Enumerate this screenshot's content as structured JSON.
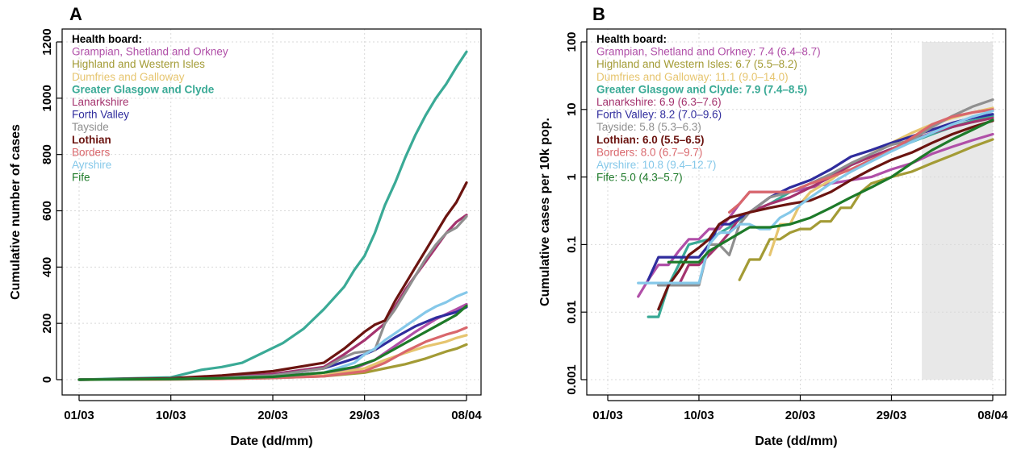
{
  "panels": [
    {
      "label": "A"
    },
    {
      "label": "B"
    }
  ],
  "legend_title": "Health board:",
  "chart_data": [
    {
      "type": "line",
      "panel": "A",
      "xlabel": "Date (dd/mm)",
      "ylabel": "Cumulative number of cases",
      "xticks": [
        "01/03",
        "10/03",
        "20/03",
        "29/03",
        "08/04"
      ],
      "xtick_days": [
        0,
        9,
        19,
        28,
        38
      ],
      "xlim": [
        0,
        38
      ],
      "ylim": [
        0,
        1200
      ],
      "yticks": [
        0,
        200,
        400,
        600,
        800,
        1000,
        1200
      ],
      "ytick_labels": [
        "0",
        "200",
        "400",
        "600",
        "800",
        "1000",
        "1200"
      ],
      "y_scale": "linear",
      "grid": true,
      "legend_position": "top-left",
      "series": [
        {
          "name": "Grampian, Shetland and Orkney",
          "color": "#b04fa8",
          "bold": false,
          "x": [
            0,
            9,
            14,
            19,
            24,
            27,
            29,
            31,
            33,
            35,
            37,
            38
          ],
          "y": [
            0,
            3,
            6,
            12,
            25,
            40,
            70,
            120,
            170,
            215,
            250,
            268
          ]
        },
        {
          "name": "Highland and Western Isles",
          "color": "#a39b35",
          "bold": false,
          "x": [
            0,
            9,
            14,
            19,
            24,
            28,
            30,
            32,
            34,
            36,
            37,
            38
          ],
          "y": [
            0,
            1,
            3,
            6,
            12,
            25,
            40,
            55,
            75,
            100,
            110,
            125
          ]
        },
        {
          "name": "Dumfries and Galloway",
          "color": "#e6c56f",
          "bold": false,
          "x": [
            0,
            9,
            14,
            19,
            24,
            28,
            30,
            32,
            34,
            36,
            37,
            38
          ],
          "y": [
            0,
            1,
            3,
            6,
            15,
            40,
            70,
            95,
            118,
            135,
            148,
            158
          ]
        },
        {
          "name": "Greater Glasgow and Clyde",
          "color": "#3aaa96",
          "bold": true,
          "x": [
            0,
            9,
            12,
            14,
            16,
            18,
            20,
            22,
            24,
            26,
            27,
            28,
            29,
            30,
            31,
            32,
            33,
            34,
            35,
            36,
            37,
            38
          ],
          "y": [
            0,
            8,
            35,
            45,
            60,
            95,
            130,
            180,
            250,
            330,
            390,
            440,
            520,
            620,
            700,
            790,
            870,
            940,
            1000,
            1050,
            1110,
            1165
          ]
        },
        {
          "name": "Lanarkshire",
          "color": "#a4336e",
          "bold": false,
          "x": [
            0,
            9,
            14,
            19,
            24,
            26,
            28,
            29,
            30,
            31,
            32,
            33,
            34,
            35,
            36,
            37,
            38
          ],
          "y": [
            0,
            3,
            10,
            20,
            45,
            90,
            140,
            170,
            200,
            260,
            320,
            370,
            420,
            470,
            520,
            560,
            585
          ]
        },
        {
          "name": "Forth Valley",
          "color": "#2f2c9d",
          "bold": false,
          "x": [
            0,
            9,
            14,
            19,
            24,
            27,
            29,
            31,
            33,
            35,
            37,
            38
          ],
          "y": [
            0,
            3,
            8,
            15,
            40,
            75,
            105,
            150,
            190,
            220,
            240,
            258
          ]
        },
        {
          "name": "Tayside",
          "color": "#8f8f8f",
          "bold": false,
          "x": [
            0,
            9,
            14,
            19,
            24,
            26,
            27,
            28,
            29,
            30,
            31,
            32,
            33,
            34,
            35,
            36,
            37,
            38
          ],
          "y": [
            0,
            3,
            8,
            15,
            40,
            80,
            95,
            100,
            105,
            200,
            250,
            310,
            370,
            430,
            480,
            520,
            540,
            580
          ]
        },
        {
          "name": "Lothian",
          "color": "#6b1410",
          "bold": true,
          "x": [
            0,
            9,
            14,
            19,
            24,
            26,
            28,
            29,
            30,
            31,
            32,
            33,
            34,
            35,
            36,
            37,
            38
          ],
          "y": [
            0,
            5,
            15,
            30,
            60,
            110,
            170,
            195,
            210,
            280,
            340,
            400,
            460,
            520,
            580,
            630,
            700
          ]
        },
        {
          "name": "Borders",
          "color": "#d9676c",
          "bold": false,
          "x": [
            0,
            9,
            14,
            19,
            24,
            28,
            30,
            32,
            34,
            36,
            37,
            38
          ],
          "y": [
            0,
            1,
            3,
            6,
            12,
            30,
            60,
            100,
            135,
            160,
            170,
            185
          ]
        },
        {
          "name": "Ayrshire",
          "color": "#85c8e9",
          "bold": false,
          "x": [
            0,
            9,
            14,
            19,
            24,
            27,
            28,
            29,
            30,
            31,
            32,
            33,
            34,
            35,
            36,
            37,
            38
          ],
          "y": [
            0,
            2,
            5,
            10,
            25,
            60,
            90,
            110,
            140,
            165,
            190,
            215,
            240,
            260,
            275,
            295,
            310
          ]
        },
        {
          "name": "Fife",
          "color": "#1d7a29",
          "bold": false,
          "x": [
            0,
            9,
            14,
            19,
            24,
            27,
            29,
            31,
            33,
            35,
            37,
            38
          ],
          "y": [
            0,
            2,
            5,
            10,
            25,
            45,
            70,
            110,
            150,
            190,
            230,
            262
          ]
        }
      ]
    },
    {
      "type": "line",
      "panel": "B",
      "xlabel": "Date (dd/mm)",
      "ylabel": "Cumulative cases per 10k pop.",
      "xticks": [
        "01/03",
        "10/03",
        "20/03",
        "29/03",
        "08/04"
      ],
      "xtick_days": [
        0,
        9,
        19,
        28,
        38
      ],
      "xlim": [
        0,
        38
      ],
      "ylim": [
        0.001,
        100
      ],
      "yticks": [
        0.001,
        0.01,
        0.1,
        1,
        10,
        100
      ],
      "ytick_labels": [
        "0.001",
        "0.01",
        "0.1",
        "1",
        "10",
        "100"
      ],
      "y_scale": "log",
      "grid": true,
      "legend_position": "top-left",
      "shaded_x_range": [
        31,
        38
      ],
      "shade_color": "#e8e8e8",
      "series": [
        {
          "name": "Grampian, Shetland and Orkney",
          "value": "7.4",
          "ci": "(6.4–8.7)",
          "color": "#b04fa8",
          "bold": false,
          "x": [
            3,
            4,
            5,
            6,
            7,
            8,
            9,
            10,
            11,
            12,
            13,
            14,
            16,
            18,
            20,
            22,
            24,
            26,
            28,
            30,
            32,
            34,
            36,
            38
          ],
          "y": [
            0.017,
            0.03,
            0.05,
            0.05,
            0.08,
            0.12,
            0.12,
            0.17,
            0.17,
            0.25,
            0.4,
            0.6,
            0.6,
            0.6,
            0.7,
            0.8,
            0.9,
            1.0,
            1.3,
            1.6,
            2.2,
            2.8,
            3.5,
            4.3
          ]
        },
        {
          "name": "Highland and Western Isles",
          "value": "6.7",
          "ci": "(5.5–8.2)",
          "color": "#a39b35",
          "bold": false,
          "x": [
            13,
            14,
            15,
            16,
            17,
            18,
            19,
            20,
            21,
            22,
            23,
            24,
            25,
            26,
            28,
            30,
            32,
            34,
            36,
            38
          ],
          "y": [
            0.03,
            0.06,
            0.06,
            0.12,
            0.12,
            0.15,
            0.17,
            0.17,
            0.22,
            0.22,
            0.35,
            0.35,
            0.6,
            0.8,
            1.0,
            1.2,
            1.6,
            2.1,
            2.8,
            3.6
          ]
        },
        {
          "name": "Dumfries and Galloway",
          "value": "11.1",
          "ci": "(9.0–14.0)",
          "color": "#e6c56f",
          "bold": false,
          "x": [
            16,
            17,
            18,
            19,
            20,
            22,
            24,
            26,
            28,
            30,
            32,
            34,
            36,
            38
          ],
          "y": [
            0.07,
            0.2,
            0.2,
            0.4,
            0.6,
            0.9,
            1.5,
            2.2,
            3.2,
            4.5,
            6.0,
            7.5,
            9.0,
            10.5
          ]
        },
        {
          "name": "Greater Glasgow and Clyde",
          "value": "7.9",
          "ci": "(7.4–8.5)",
          "color": "#3aaa96",
          "bold": true,
          "x": [
            4,
            5,
            6,
            7,
            8,
            10,
            12,
            14,
            16,
            18,
            20,
            22,
            24,
            26,
            28,
            30,
            32,
            34,
            36,
            38
          ],
          "y": [
            0.0085,
            0.0085,
            0.025,
            0.05,
            0.1,
            0.12,
            0.18,
            0.3,
            0.4,
            0.6,
            0.8,
            1.1,
            1.5,
            2.0,
            2.6,
            3.3,
            4.3,
            5.5,
            6.8,
            8.0
          ]
        },
        {
          "name": "Lanarkshire",
          "value": "6.9",
          "ci": "(6.3–7.6)",
          "color": "#a4336e",
          "bold": false,
          "x": [
            5,
            6,
            7,
            8,
            9,
            10,
            11,
            12,
            13,
            14,
            16,
            18,
            20,
            22,
            24,
            26,
            28,
            30,
            32,
            34,
            36,
            38
          ],
          "y": [
            0.025,
            0.025,
            0.025,
            0.05,
            0.05,
            0.07,
            0.1,
            0.15,
            0.25,
            0.3,
            0.4,
            0.5,
            0.7,
            1.0,
            1.5,
            2.0,
            2.6,
            3.5,
            4.5,
            5.5,
            6.5,
            7.5
          ]
        },
        {
          "name": "Forth Valley",
          "value": "8.2",
          "ci": "(7.0–9.6)",
          "color": "#2f2c9d",
          "bold": false,
          "x": [
            4,
            5,
            6,
            7,
            8,
            9,
            10,
            11,
            12,
            14,
            16,
            18,
            20,
            22,
            24,
            26,
            28,
            30,
            32,
            34,
            36,
            38
          ],
          "y": [
            0.03,
            0.065,
            0.065,
            0.065,
            0.065,
            0.065,
            0.1,
            0.2,
            0.2,
            0.3,
            0.5,
            0.7,
            0.9,
            1.3,
            2.0,
            2.5,
            3.2,
            4.0,
            5.0,
            6.3,
            7.5,
            8.5
          ]
        },
        {
          "name": "Tayside",
          "value": "5.8",
          "ci": "(5.3–6.3)",
          "color": "#8f8f8f",
          "bold": false,
          "x": [
            5,
            6,
            7,
            8,
            9,
            10,
            11,
            12,
            13,
            14,
            16,
            18,
            20,
            22,
            24,
            26,
            28,
            30,
            32,
            34,
            36,
            38
          ],
          "y": [
            0.025,
            0.025,
            0.025,
            0.025,
            0.025,
            0.1,
            0.1,
            0.07,
            0.2,
            0.3,
            0.5,
            0.6,
            0.8,
            1.1,
            1.6,
            2.2,
            3.0,
            3.5,
            5.5,
            8.0,
            11.0,
            14.0
          ]
        },
        {
          "name": "Lothian",
          "value": "6.0",
          "ci": "(5.5–6.5)",
          "color": "#6b1410",
          "bold": true,
          "x": [
            5,
            6,
            7,
            8,
            9,
            10,
            11,
            12,
            14,
            16,
            18,
            20,
            22,
            24,
            26,
            28,
            30,
            32,
            34,
            36,
            38
          ],
          "y": [
            0.011,
            0.025,
            0.04,
            0.07,
            0.09,
            0.12,
            0.2,
            0.25,
            0.3,
            0.35,
            0.4,
            0.45,
            0.6,
            0.9,
            1.3,
            1.8,
            2.3,
            3.2,
            4.3,
            5.5,
            6.8
          ]
        },
        {
          "name": "Borders",
          "value": "8.0",
          "ci": "(6.7–9.7)",
          "color": "#d9676c",
          "bold": false,
          "x": [
            12,
            13,
            14,
            16,
            18,
            20,
            22,
            24,
            26,
            28,
            30,
            32,
            34,
            36,
            38
          ],
          "y": [
            0.3,
            0.4,
            0.6,
            0.6,
            0.6,
            0.8,
            1.0,
            1.3,
            1.8,
            2.5,
            3.8,
            6.0,
            7.8,
            9.0,
            10.0
          ]
        },
        {
          "name": "Ayrshire",
          "value": "10.8",
          "ci": "(9.4–12.7)",
          "color": "#85c8e9",
          "bold": false,
          "x": [
            3,
            4,
            5,
            6,
            7,
            8,
            9,
            10,
            11,
            12,
            13,
            14,
            15,
            16,
            17,
            18,
            20,
            22,
            24,
            26,
            28,
            30,
            32,
            34,
            36,
            38
          ],
          "y": [
            0.027,
            0.027,
            0.027,
            0.027,
            0.027,
            0.027,
            0.027,
            0.1,
            0.15,
            0.15,
            0.2,
            0.2,
            0.17,
            0.17,
            0.25,
            0.3,
            0.5,
            0.8,
            1.2,
            1.7,
            2.4,
            3.3,
            4.5,
            6.0,
            7.8,
            9.5
          ]
        },
        {
          "name": "Fife",
          "value": "5.0",
          "ci": "(4.3–5.7)",
          "color": "#1d7a29",
          "bold": false,
          "x": [
            6,
            7,
            8,
            9,
            10,
            12,
            14,
            16,
            18,
            20,
            22,
            24,
            26,
            28,
            30,
            32,
            34,
            36,
            38
          ],
          "y": [
            0.055,
            0.055,
            0.055,
            0.055,
            0.08,
            0.12,
            0.18,
            0.18,
            0.2,
            0.25,
            0.35,
            0.5,
            0.7,
            1.0,
            1.6,
            2.5,
            3.6,
            5.0,
            7.0
          ]
        }
      ]
    }
  ]
}
